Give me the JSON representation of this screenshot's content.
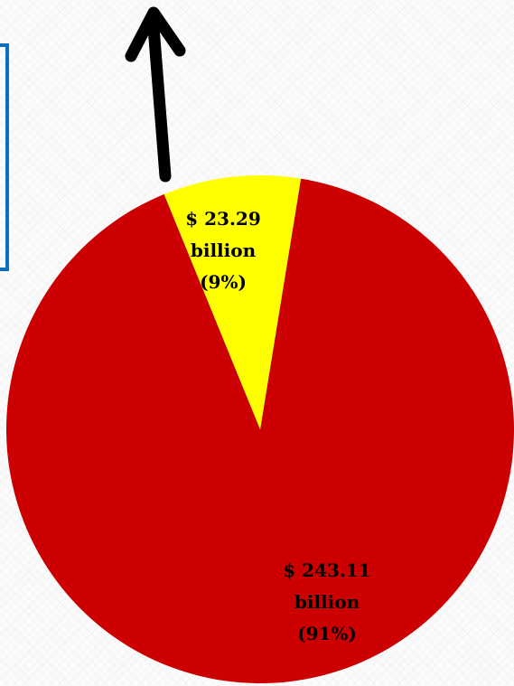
{
  "chart_data": {
    "type": "pie",
    "title": "",
    "slices": [
      {
        "value": 243.11,
        "percent": 91,
        "color": "#cc0000",
        "label_lines": [
          "$ 243.11",
          "billion",
          "(91%)"
        ]
      },
      {
        "value": 23.29,
        "percent": 9,
        "color": "#ffff00",
        "label_lines": [
          "$ 23.29",
          "billion",
          "(9%)"
        ]
      }
    ],
    "legend": "none",
    "annotation": "arrow-up-from-small-slice"
  },
  "colors": {
    "frame": "#0b6fc0",
    "arrow": "#000000",
    "label_text": "#000000"
  },
  "icons": {
    "arrow": "arrow-up-icon"
  }
}
